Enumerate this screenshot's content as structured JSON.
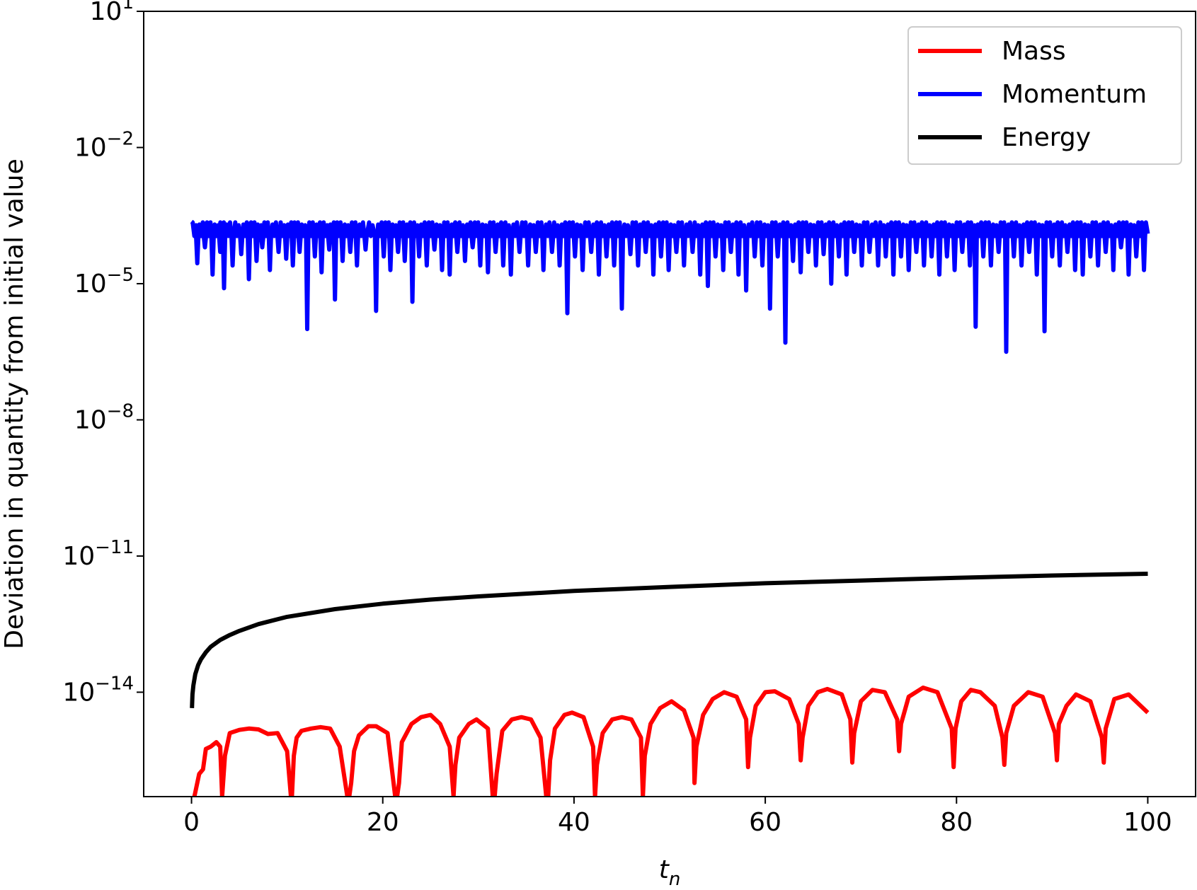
{
  "chart_data": {
    "type": "line",
    "xlabel_base": "t",
    "xlabel_sub": "n",
    "ylabel": "Deviation in quantity from initial value",
    "yscale": "log",
    "xlim": [
      -5,
      105
    ],
    "ylim_exp": [
      -16.3,
      1
    ],
    "xticks": [
      "0",
      "20",
      "40",
      "60",
      "80",
      "100"
    ],
    "xtick_values": [
      0,
      20,
      40,
      60,
      80,
      100
    ],
    "yticks": [
      {
        "base": "10",
        "exp": "1",
        "value_exp": 1
      },
      {
        "base": "10",
        "exp": "−2",
        "value_exp": -2
      },
      {
        "base": "10",
        "exp": "−5",
        "value_exp": -5
      },
      {
        "base": "10",
        "exp": "−8",
        "value_exp": -8
      },
      {
        "base": "10",
        "exp": "−11",
        "value_exp": -11
      },
      {
        "base": "10",
        "exp": "−14",
        "value_exp": -14
      }
    ],
    "grid": false,
    "legend_position": "upper-right",
    "series": [
      {
        "name": "Mass",
        "color": "#ff0000",
        "x": [
          0.3,
          0.8,
          1.2,
          1.5,
          2.0,
          2.6,
          3.0,
          3.2,
          3.5,
          4.0,
          5.0,
          6.0,
          7.0,
          8.0,
          9.0,
          10.0,
          10.4,
          10.5,
          10.7,
          11.0,
          11.5,
          12.5,
          13.5,
          14.5,
          15.5,
          16.3,
          16.5,
          16.7,
          17.0,
          17.5,
          18.5,
          19.3,
          20.5,
          21.3,
          21.5,
          21.7,
          22.0,
          23.0,
          24.0,
          25.0,
          26.0,
          27.0,
          27.4,
          27.6,
          28.0,
          29.0,
          29.8,
          31.0,
          31.5,
          31.7,
          31.9,
          32.5,
          33.5,
          34.5,
          35.5,
          36.5,
          37.1,
          37.3,
          37.5,
          38.0,
          39.0,
          39.8,
          41.0,
          42.0,
          42.2,
          42.4,
          43.0,
          44.0,
          45.0,
          46.0,
          47.0,
          47.2,
          47.4,
          48.0,
          49.0,
          50.2,
          51.5,
          52.5,
          52.6,
          52.8,
          53.5,
          54.5,
          55.7,
          57.0,
          58.0,
          58.2,
          58.4,
          59.0,
          60.0,
          61.0,
          62.5,
          63.5,
          63.7,
          63.9,
          64.5,
          65.5,
          66.5,
          68.0,
          68.9,
          69.1,
          69.3,
          70.0,
          71.2,
          72.5,
          73.8,
          74.0,
          74.2,
          75.0,
          76.5,
          78.0,
          79.5,
          79.7,
          79.9,
          80.5,
          81.5,
          82.5,
          84.0,
          84.8,
          85.0,
          85.2,
          86.0,
          87.5,
          89.0,
          90.3,
          90.5,
          90.7,
          91.5,
          92.5,
          94.0,
          95.2,
          95.4,
          95.6,
          96.5,
          98.0,
          100.0
        ],
        "y_exp": [
          -16.3,
          -15.8,
          -15.7,
          -15.25,
          -15.2,
          -15.1,
          -15.2,
          -16.3,
          -15.4,
          -14.9,
          -14.83,
          -14.8,
          -14.82,
          -14.92,
          -14.9,
          -15.3,
          -16.3,
          -16.3,
          -15.4,
          -15.0,
          -14.85,
          -14.8,
          -14.77,
          -14.8,
          -15.2,
          -16.3,
          -16.3,
          -16.0,
          -15.3,
          -14.95,
          -14.75,
          -14.75,
          -14.9,
          -16.3,
          -16.3,
          -16.0,
          -15.1,
          -14.7,
          -14.55,
          -14.5,
          -14.7,
          -15.2,
          -16.3,
          -15.6,
          -15.0,
          -14.7,
          -14.6,
          -14.8,
          -16.3,
          -16.3,
          -15.8,
          -14.85,
          -14.6,
          -14.55,
          -14.6,
          -15.0,
          -16.3,
          -16.3,
          -15.5,
          -14.8,
          -14.5,
          -14.45,
          -14.55,
          -15.2,
          -16.3,
          -15.6,
          -14.9,
          -14.6,
          -14.55,
          -14.6,
          -15.0,
          -16.3,
          -15.4,
          -14.7,
          -14.35,
          -14.2,
          -14.4,
          -15.0,
          -16.0,
          -15.2,
          -14.5,
          -14.15,
          -14.0,
          -14.1,
          -14.6,
          -15.65,
          -15.0,
          -14.3,
          -14.0,
          -13.98,
          -14.15,
          -14.7,
          -15.5,
          -15.0,
          -14.3,
          -14.0,
          -13.93,
          -14.05,
          -14.6,
          -15.55,
          -14.9,
          -14.2,
          -13.95,
          -14.0,
          -14.6,
          -15.3,
          -14.7,
          -14.1,
          -13.9,
          -14.0,
          -14.8,
          -15.65,
          -14.8,
          -14.2,
          -13.95,
          -14.0,
          -14.3,
          -15.0,
          -15.6,
          -14.9,
          -14.3,
          -14.0,
          -14.1,
          -14.9,
          -15.5,
          -14.7,
          -14.3,
          -14.05,
          -14.2,
          -15.0,
          -15.55,
          -14.8,
          -14.15,
          -14.05,
          -14.45
        ]
      },
      {
        "name": "Momentum",
        "color": "#0000ff",
        "x_start": 0,
        "x_end": 100,
        "upper_exp": -3.65,
        "base_exp": -3.95,
        "dips": [
          [
            0.6,
            -4.55
          ],
          [
            1.4,
            -4.2
          ],
          [
            2.2,
            -4.8
          ],
          [
            3.0,
            -4.3
          ],
          [
            3.4,
            -5.1
          ],
          [
            4.3,
            -4.6
          ],
          [
            5.2,
            -4.35
          ],
          [
            6.0,
            -4.9
          ],
          [
            6.8,
            -4.5
          ],
          [
            7.4,
            -4.2
          ],
          [
            8.2,
            -4.7
          ],
          [
            9.1,
            -4.3
          ],
          [
            9.9,
            -4.45
          ],
          [
            10.6,
            -4.6
          ],
          [
            11.3,
            -4.3
          ],
          [
            12.1,
            -6.0
          ],
          [
            12.9,
            -4.4
          ],
          [
            13.6,
            -4.75
          ],
          [
            14.4,
            -4.25
          ],
          [
            15.0,
            -5.35
          ],
          [
            15.8,
            -4.5
          ],
          [
            16.6,
            -4.3
          ],
          [
            17.3,
            -4.6
          ],
          [
            18.2,
            -4.25
          ],
          [
            19.3,
            -5.6
          ],
          [
            20.1,
            -4.4
          ],
          [
            20.8,
            -4.7
          ],
          [
            21.6,
            -4.3
          ],
          [
            22.3,
            -4.5
          ],
          [
            23.1,
            -5.4
          ],
          [
            23.8,
            -4.4
          ],
          [
            24.6,
            -4.6
          ],
          [
            25.4,
            -4.25
          ],
          [
            26.2,
            -4.7
          ],
          [
            27.0,
            -4.8
          ],
          [
            27.8,
            -4.3
          ],
          [
            28.6,
            -4.5
          ],
          [
            29.4,
            -4.2
          ],
          [
            30.2,
            -4.6
          ],
          [
            31.0,
            -4.75
          ],
          [
            31.8,
            -4.3
          ],
          [
            32.6,
            -4.6
          ],
          [
            33.4,
            -4.8
          ],
          [
            34.3,
            -4.3
          ],
          [
            35.2,
            -4.6
          ],
          [
            36.0,
            -4.3
          ],
          [
            36.8,
            -4.7
          ],
          [
            37.7,
            -4.3
          ],
          [
            38.5,
            -4.6
          ],
          [
            39.3,
            -5.65
          ],
          [
            40.1,
            -4.4
          ],
          [
            40.9,
            -4.7
          ],
          [
            41.8,
            -4.3
          ],
          [
            42.6,
            -4.8
          ],
          [
            43.4,
            -4.4
          ],
          [
            44.2,
            -4.6
          ],
          [
            45.0,
            -5.55
          ],
          [
            45.9,
            -4.35
          ],
          [
            46.7,
            -4.6
          ],
          [
            47.5,
            -4.3
          ],
          [
            48.3,
            -4.8
          ],
          [
            49.1,
            -4.4
          ],
          [
            49.9,
            -4.7
          ],
          [
            50.7,
            -4.3
          ],
          [
            51.5,
            -4.6
          ],
          [
            52.4,
            -4.3
          ],
          [
            53.2,
            -4.8
          ],
          [
            54.0,
            -5.05
          ],
          [
            54.8,
            -4.4
          ],
          [
            55.6,
            -4.7
          ],
          [
            56.4,
            -4.3
          ],
          [
            57.2,
            -4.8
          ],
          [
            58.0,
            -5.15
          ],
          [
            58.9,
            -4.4
          ],
          [
            59.7,
            -4.6
          ],
          [
            60.5,
            -5.55
          ],
          [
            61.3,
            -4.4
          ],
          [
            62.1,
            -6.3
          ],
          [
            62.9,
            -4.5
          ],
          [
            63.7,
            -4.75
          ],
          [
            64.5,
            -4.3
          ],
          [
            65.3,
            -4.6
          ],
          [
            66.1,
            -4.35
          ],
          [
            66.9,
            -5.0
          ],
          [
            67.7,
            -4.4
          ],
          [
            68.5,
            -4.8
          ],
          [
            69.3,
            -4.3
          ],
          [
            70.1,
            -4.6
          ],
          [
            70.9,
            -4.3
          ],
          [
            71.8,
            -4.6
          ],
          [
            72.6,
            -4.4
          ],
          [
            73.4,
            -4.8
          ],
          [
            74.2,
            -4.4
          ],
          [
            75.0,
            -4.7
          ],
          [
            75.8,
            -4.3
          ],
          [
            76.6,
            -4.6
          ],
          [
            77.4,
            -4.4
          ],
          [
            78.2,
            -4.8
          ],
          [
            79.0,
            -4.4
          ],
          [
            79.8,
            -4.7
          ],
          [
            80.6,
            -4.3
          ],
          [
            81.4,
            -4.6
          ],
          [
            82.0,
            -5.95
          ],
          [
            82.8,
            -4.4
          ],
          [
            83.6,
            -4.6
          ],
          [
            84.4,
            -4.3
          ],
          [
            85.2,
            -6.5
          ],
          [
            86.0,
            -4.4
          ],
          [
            86.8,
            -4.6
          ],
          [
            87.6,
            -4.3
          ],
          [
            88.4,
            -4.8
          ],
          [
            89.2,
            -6.05
          ],
          [
            90.0,
            -4.4
          ],
          [
            90.8,
            -4.6
          ],
          [
            91.6,
            -4.3
          ],
          [
            92.4,
            -4.7
          ],
          [
            93.2,
            -4.8
          ],
          [
            94.0,
            -4.4
          ],
          [
            94.8,
            -4.6
          ],
          [
            95.6,
            -4.3
          ],
          [
            96.4,
            -4.7
          ],
          [
            97.2,
            -4.2
          ],
          [
            98.0,
            -4.8
          ],
          [
            98.8,
            -4.4
          ],
          [
            99.6,
            -4.7
          ]
        ]
      },
      {
        "name": "Energy",
        "color": "#000000",
        "x": [
          0.05,
          0.1,
          0.2,
          0.4,
          0.7,
          1.0,
          1.5,
          2.0,
          3.0,
          4.0,
          5.0,
          7.0,
          10.0,
          15.0,
          20.0,
          25.0,
          30.0,
          40.0,
          50.0,
          60.0,
          70.0,
          80.0,
          90.0,
          100.0
        ],
        "y_exp": [
          -14.35,
          -14.05,
          -13.85,
          -13.6,
          -13.4,
          -13.27,
          -13.12,
          -13.0,
          -12.85,
          -12.74,
          -12.65,
          -12.5,
          -12.34,
          -12.17,
          -12.05,
          -11.96,
          -11.89,
          -11.77,
          -11.68,
          -11.6,
          -11.54,
          -11.48,
          -11.43,
          -11.39
        ]
      }
    ]
  }
}
